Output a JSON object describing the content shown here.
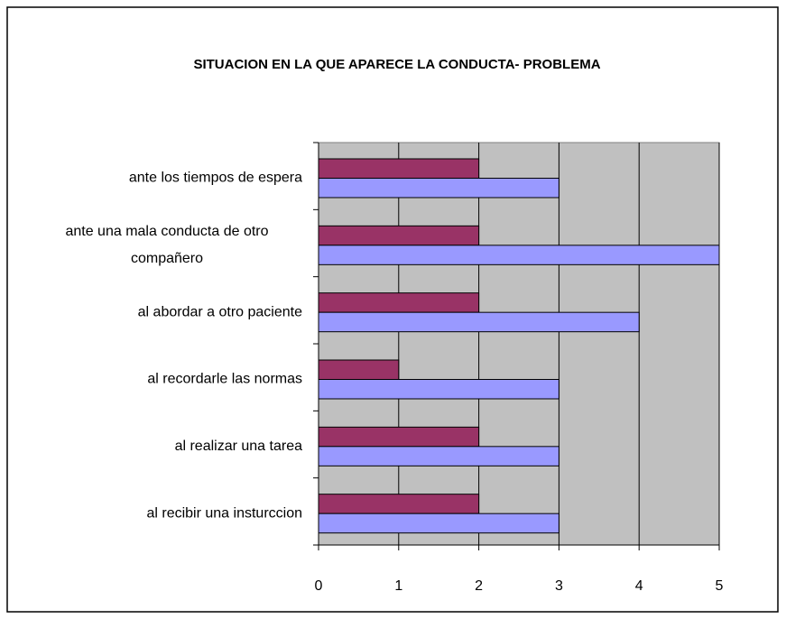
{
  "chart_data": {
    "type": "barh",
    "title": "SITUACION EN LA QUE APARECE LA CONDUCTA- PROBLEMA",
    "categories": [
      "ante los tiempos de espera",
      "ante una mala conducta de otro compañero",
      "al abordar a otro paciente",
      "al recordarle las normas",
      "al realizar una tarea",
      "al recibir una insturccion"
    ],
    "series": [
      {
        "color": "#993366",
        "values": [
          2,
          2,
          2,
          1,
          2,
          2
        ]
      },
      {
        "color": "#9999ff",
        "values": [
          3,
          5,
          4,
          3,
          3,
          3
        ]
      }
    ],
    "xlim": [
      0,
      5
    ],
    "xticks": [
      0,
      1,
      2,
      3,
      4,
      5
    ],
    "grid": true
  }
}
